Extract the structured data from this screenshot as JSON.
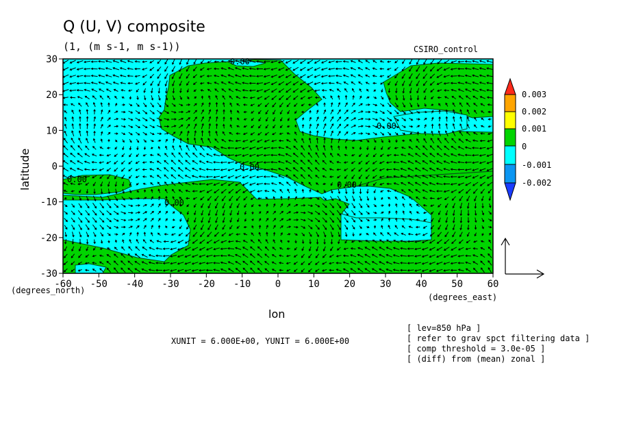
{
  "chart_data": {
    "type": "heatmap",
    "title": "Q (U, V) composite",
    "subtitle": "(1, (m s-1, m s-1))",
    "dataset_label": "CSIRO_control",
    "xlabel": "lon",
    "ylabel": "latitude",
    "x_unit_label": "(degrees_east)",
    "y_unit_label": "(degrees_north)",
    "xlim": [
      -60,
      60
    ],
    "ylim": [
      -30,
      30
    ],
    "x_ticks": [
      -60,
      -50,
      -40,
      -30,
      -20,
      -10,
      0,
      10,
      20,
      30,
      40,
      50,
      60
    ],
    "y_ticks": [
      -30,
      -20,
      -10,
      0,
      10,
      20,
      30
    ],
    "colorbar": {
      "levels": [
        "0.003",
        "0.002",
        "0.001",
        "0",
        "-0.001",
        "-0.002"
      ],
      "colors": [
        "#ff2a1a",
        "#ffa500",
        "#ffff00",
        "#00d400",
        "#00ffff",
        "#0b96f2",
        "#1a3cff"
      ]
    },
    "contour_label": "0.00",
    "vector_scale_text": "XUNIT = 6.000E+00, YUNIT = 6.000E+00",
    "notes": [
      "[ lev=850 hPa ]",
      "[ refer to grav spct filtering data ]",
      "[ comp threshold = 3.0e-05 ]",
      "[ (diff) from (mean) zonal ]"
    ]
  },
  "colors": {
    "positive_fill": "#00d400",
    "negative_fill": "#00ffff",
    "contour_line": "#0a4a1a",
    "vector": "#000000"
  }
}
